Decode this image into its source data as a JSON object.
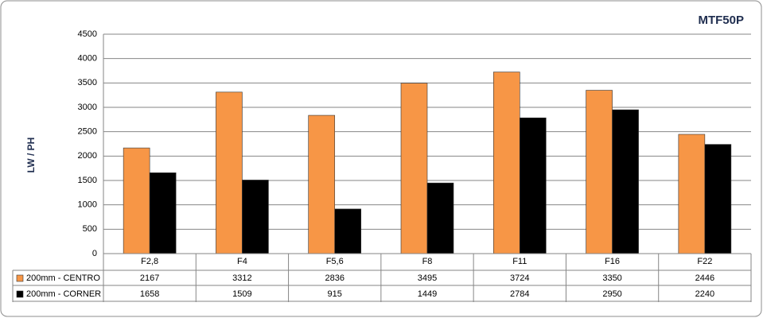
{
  "chart_data": {
    "type": "bar",
    "title": "MTF50P",
    "y_label": "LW / PH",
    "categories": [
      "F2,8",
      "F4",
      "F5,6",
      "F8",
      "F11",
      "F16",
      "F22"
    ],
    "series": [
      {
        "name": "200mm - CENTRO",
        "color": "#f79646",
        "values": [
          2167,
          3312,
          2836,
          3495,
          3724,
          3350,
          2446
        ]
      },
      {
        "name": "200mm - CORNER",
        "color": "#000000",
        "values": [
          1658,
          1509,
          915,
          1449,
          2784,
          2950,
          2240
        ]
      }
    ],
    "ylim": [
      0,
      4500
    ],
    "yticks": [
      0,
      500,
      1000,
      1500,
      2000,
      2500,
      3000,
      3500,
      4000,
      4500
    ],
    "grid": true,
    "data_table": true
  }
}
